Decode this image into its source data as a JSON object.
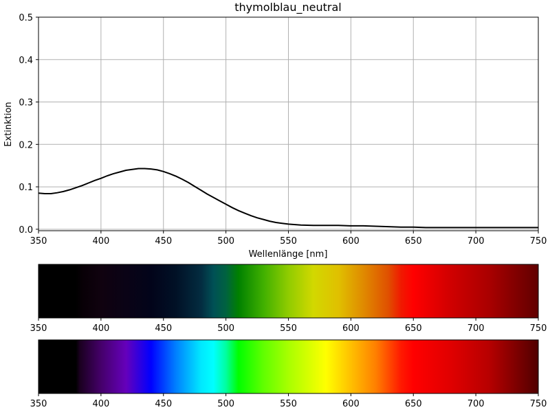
{
  "chart_data": [
    {
      "type": "line",
      "title": "thymolblau_neutral",
      "xlabel": "Wellenlänge [nm]",
      "ylabel": "Extinktion",
      "xlim": [
        350,
        750
      ],
      "ylim": [
        0.0,
        0.5
      ],
      "x_ticks": [
        "350",
        "400",
        "450",
        "500",
        "550",
        "600",
        "650",
        "700",
        "750"
      ],
      "y_ticks": [
        "0.0",
        "0.1",
        "0.2",
        "0.3",
        "0.4",
        "0.5"
      ],
      "grid": true,
      "line_color": "#000000",
      "series": [
        {
          "x": [
            350,
            355,
            360,
            365,
            370,
            375,
            380,
            385,
            390,
            395,
            400,
            405,
            410,
            415,
            420,
            425,
            430,
            435,
            440,
            445,
            450,
            455,
            460,
            465,
            470,
            475,
            480,
            485,
            490,
            495,
            500,
            505,
            510,
            515,
            520,
            525,
            530,
            535,
            540,
            545,
            550,
            560,
            570,
            580,
            590,
            600,
            610,
            620,
            630,
            640,
            650,
            660,
            670,
            680,
            690,
            700,
            710,
            720,
            730,
            740,
            750
          ],
          "y": [
            0.085,
            0.084,
            0.084,
            0.086,
            0.089,
            0.093,
            0.098,
            0.103,
            0.109,
            0.115,
            0.12,
            0.126,
            0.131,
            0.135,
            0.139,
            0.141,
            0.143,
            0.143,
            0.142,
            0.14,
            0.136,
            0.131,
            0.125,
            0.118,
            0.11,
            0.101,
            0.092,
            0.083,
            0.075,
            0.067,
            0.059,
            0.051,
            0.044,
            0.038,
            0.032,
            0.027,
            0.023,
            0.019,
            0.016,
            0.014,
            0.012,
            0.01,
            0.009,
            0.009,
            0.009,
            0.008,
            0.008,
            0.007,
            0.006,
            0.005,
            0.005,
            0.004,
            0.004,
            0.004,
            0.004,
            0.004,
            0.004,
            0.004,
            0.004,
            0.004,
            0.004
          ]
        }
      ]
    },
    {
      "type": "spectrum_bar",
      "description_key": "transmission",
      "xlim": [
        350,
        750
      ],
      "x_ticks": [
        "350",
        "400",
        "450",
        "500",
        "550",
        "600",
        "650",
        "700",
        "750"
      ],
      "colors": [
        {
          "nm": 350,
          "color": "#000000"
        },
        {
          "nm": 380,
          "color": "#000000"
        },
        {
          "nm": 385,
          "color": "#080006"
        },
        {
          "nm": 400,
          "color": "#10020f"
        },
        {
          "nm": 420,
          "color": "#0a0316"
        },
        {
          "nm": 440,
          "color": "#02041a"
        },
        {
          "nm": 460,
          "color": "#011126"
        },
        {
          "nm": 480,
          "color": "#032c40"
        },
        {
          "nm": 490,
          "color": "#005055"
        },
        {
          "nm": 500,
          "color": "#006240"
        },
        {
          "nm": 510,
          "color": "#008000"
        },
        {
          "nm": 530,
          "color": "#40b000"
        },
        {
          "nm": 550,
          "color": "#90cc00"
        },
        {
          "nm": 570,
          "color": "#d2d800"
        },
        {
          "nm": 590,
          "color": "#e0c000"
        },
        {
          "nm": 610,
          "color": "#e08a00"
        },
        {
          "nm": 630,
          "color": "#e05000"
        },
        {
          "nm": 640,
          "color": "#f01a00"
        },
        {
          "nm": 650,
          "color": "#ff0000"
        },
        {
          "nm": 680,
          "color": "#d00000"
        },
        {
          "nm": 710,
          "color": "#aa0000"
        },
        {
          "nm": 750,
          "color": "#600000"
        }
      ]
    },
    {
      "type": "spectrum_bar",
      "description_key": "reference",
      "xlim": [
        350,
        750
      ],
      "x_ticks": [
        "350",
        "400",
        "450",
        "500",
        "550",
        "600",
        "650",
        "700",
        "750"
      ],
      "colors": [
        {
          "nm": 350,
          "color": "#000000"
        },
        {
          "nm": 380,
          "color": "#000000"
        },
        {
          "nm": 383,
          "color": "#1a001f"
        },
        {
          "nm": 400,
          "color": "#45006a"
        },
        {
          "nm": 420,
          "color": "#6500bb"
        },
        {
          "nm": 440,
          "color": "#0000ff"
        },
        {
          "nm": 460,
          "color": "#0080ff"
        },
        {
          "nm": 480,
          "color": "#00e8ff"
        },
        {
          "nm": 490,
          "color": "#00ffff"
        },
        {
          "nm": 500,
          "color": "#00ffa0"
        },
        {
          "nm": 510,
          "color": "#00ff00"
        },
        {
          "nm": 530,
          "color": "#60ff00"
        },
        {
          "nm": 550,
          "color": "#a8ff00"
        },
        {
          "nm": 580,
          "color": "#ffff00"
        },
        {
          "nm": 600,
          "color": "#ffc000"
        },
        {
          "nm": 620,
          "color": "#ff7f00"
        },
        {
          "nm": 640,
          "color": "#ff1a00"
        },
        {
          "nm": 650,
          "color": "#ff0000"
        },
        {
          "nm": 680,
          "color": "#e00000"
        },
        {
          "nm": 710,
          "color": "#b80000"
        },
        {
          "nm": 750,
          "color": "#500000"
        }
      ]
    }
  ]
}
